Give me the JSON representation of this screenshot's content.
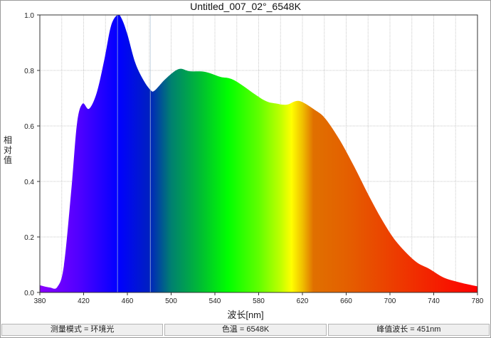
{
  "chart_data": {
    "type": "area",
    "title": "Untitled_007_02°_6548K",
    "xlabel": "波长[nm]",
    "ylabel": "相对值",
    "xlim": [
      380,
      780
    ],
    "ylim": [
      0,
      1.0
    ],
    "x_ticks": [
      "380",
      "420",
      "460",
      "500",
      "540",
      "580",
      "620",
      "660",
      "700",
      "740",
      "780"
    ],
    "y_ticks": [
      "0.0",
      "0.2",
      "0.4",
      "0.6",
      "0.8",
      "1.0"
    ],
    "grid": true,
    "fill": "visible-spectrum gradient",
    "markers_nm": [
      451,
      481
    ],
    "x": [
      380,
      389,
      396,
      402,
      409,
      414,
      419,
      425,
      432,
      439,
      445,
      451,
      455,
      460,
      467,
      474,
      481,
      485,
      495,
      507,
      517,
      531,
      545,
      558,
      584,
      597,
      606,
      617,
      632,
      641,
      654,
      667,
      680,
      693,
      706,
      723,
      736,
      749,
      764,
      780
    ],
    "y": [
      0.026,
      0.018,
      0.02,
      0.097,
      0.38,
      0.61,
      0.68,
      0.662,
      0.72,
      0.84,
      0.96,
      1.0,
      0.985,
      0.93,
      0.83,
      0.77,
      0.73,
      0.728,
      0.77,
      0.805,
      0.797,
      0.795,
      0.777,
      0.764,
      0.695,
      0.68,
      0.677,
      0.69,
      0.656,
      0.626,
      0.55,
      0.456,
      0.354,
      0.26,
      0.182,
      0.113,
      0.085,
      0.054,
      0.036,
      0.022
    ]
  },
  "status_bar": {
    "mode": "测量模式 = 环境光",
    "cct": "色温 = 6548K",
    "peak": "峰值波长 = 451nm"
  }
}
